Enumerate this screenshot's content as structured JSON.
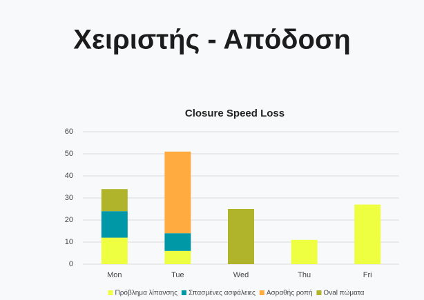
{
  "header": {
    "title": "Χειριστής - Απόδοση"
  },
  "chart_data": {
    "type": "stacked_bar",
    "title": "Closure Speed Loss",
    "categories": [
      "Mon",
      "Tue",
      "Wed",
      "Thu",
      "Fri"
    ],
    "series": [
      {
        "name": "Πρόβλημα λίπανσης",
        "color": "#eeff41",
        "values": [
          12,
          6,
          0,
          11,
          27
        ]
      },
      {
        "name": "Σπασμένες ασφάλειες",
        "color": "#0097a7",
        "values": [
          12,
          8,
          0,
          0,
          0
        ]
      },
      {
        "name": "Ασραθής ροπή",
        "color": "#ffab40",
        "values": [
          0,
          37,
          0,
          0,
          0
        ]
      },
      {
        "name": "Oval πώματα",
        "color": "#afb42b",
        "values": [
          10,
          0,
          25,
          0,
          0
        ]
      }
    ],
    "ylim": [
      0,
      60
    ],
    "yticks": [
      0,
      10,
      20,
      30,
      40,
      50,
      60
    ],
    "grid": true,
    "legend": "bottom"
  }
}
